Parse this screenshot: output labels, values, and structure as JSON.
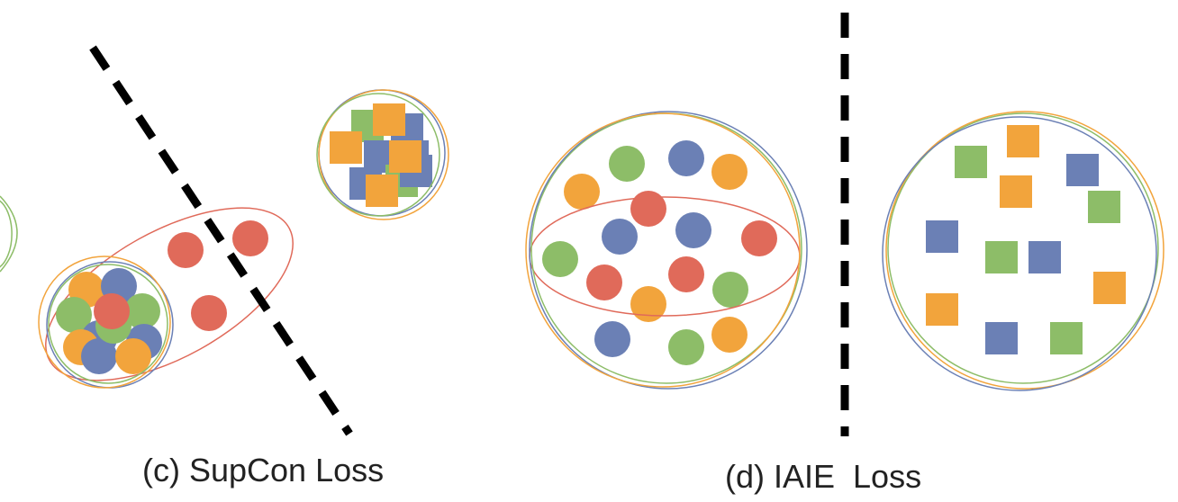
{
  "captions": {
    "panel_c": "(c) SupCon Loss",
    "panel_d": "(d) IAIE  Loss"
  },
  "colors": {
    "red": "#e06a5a",
    "blue": "#6b80b5",
    "green": "#8dbd68",
    "orange": "#f2a43c",
    "divider": "#000000"
  }
}
